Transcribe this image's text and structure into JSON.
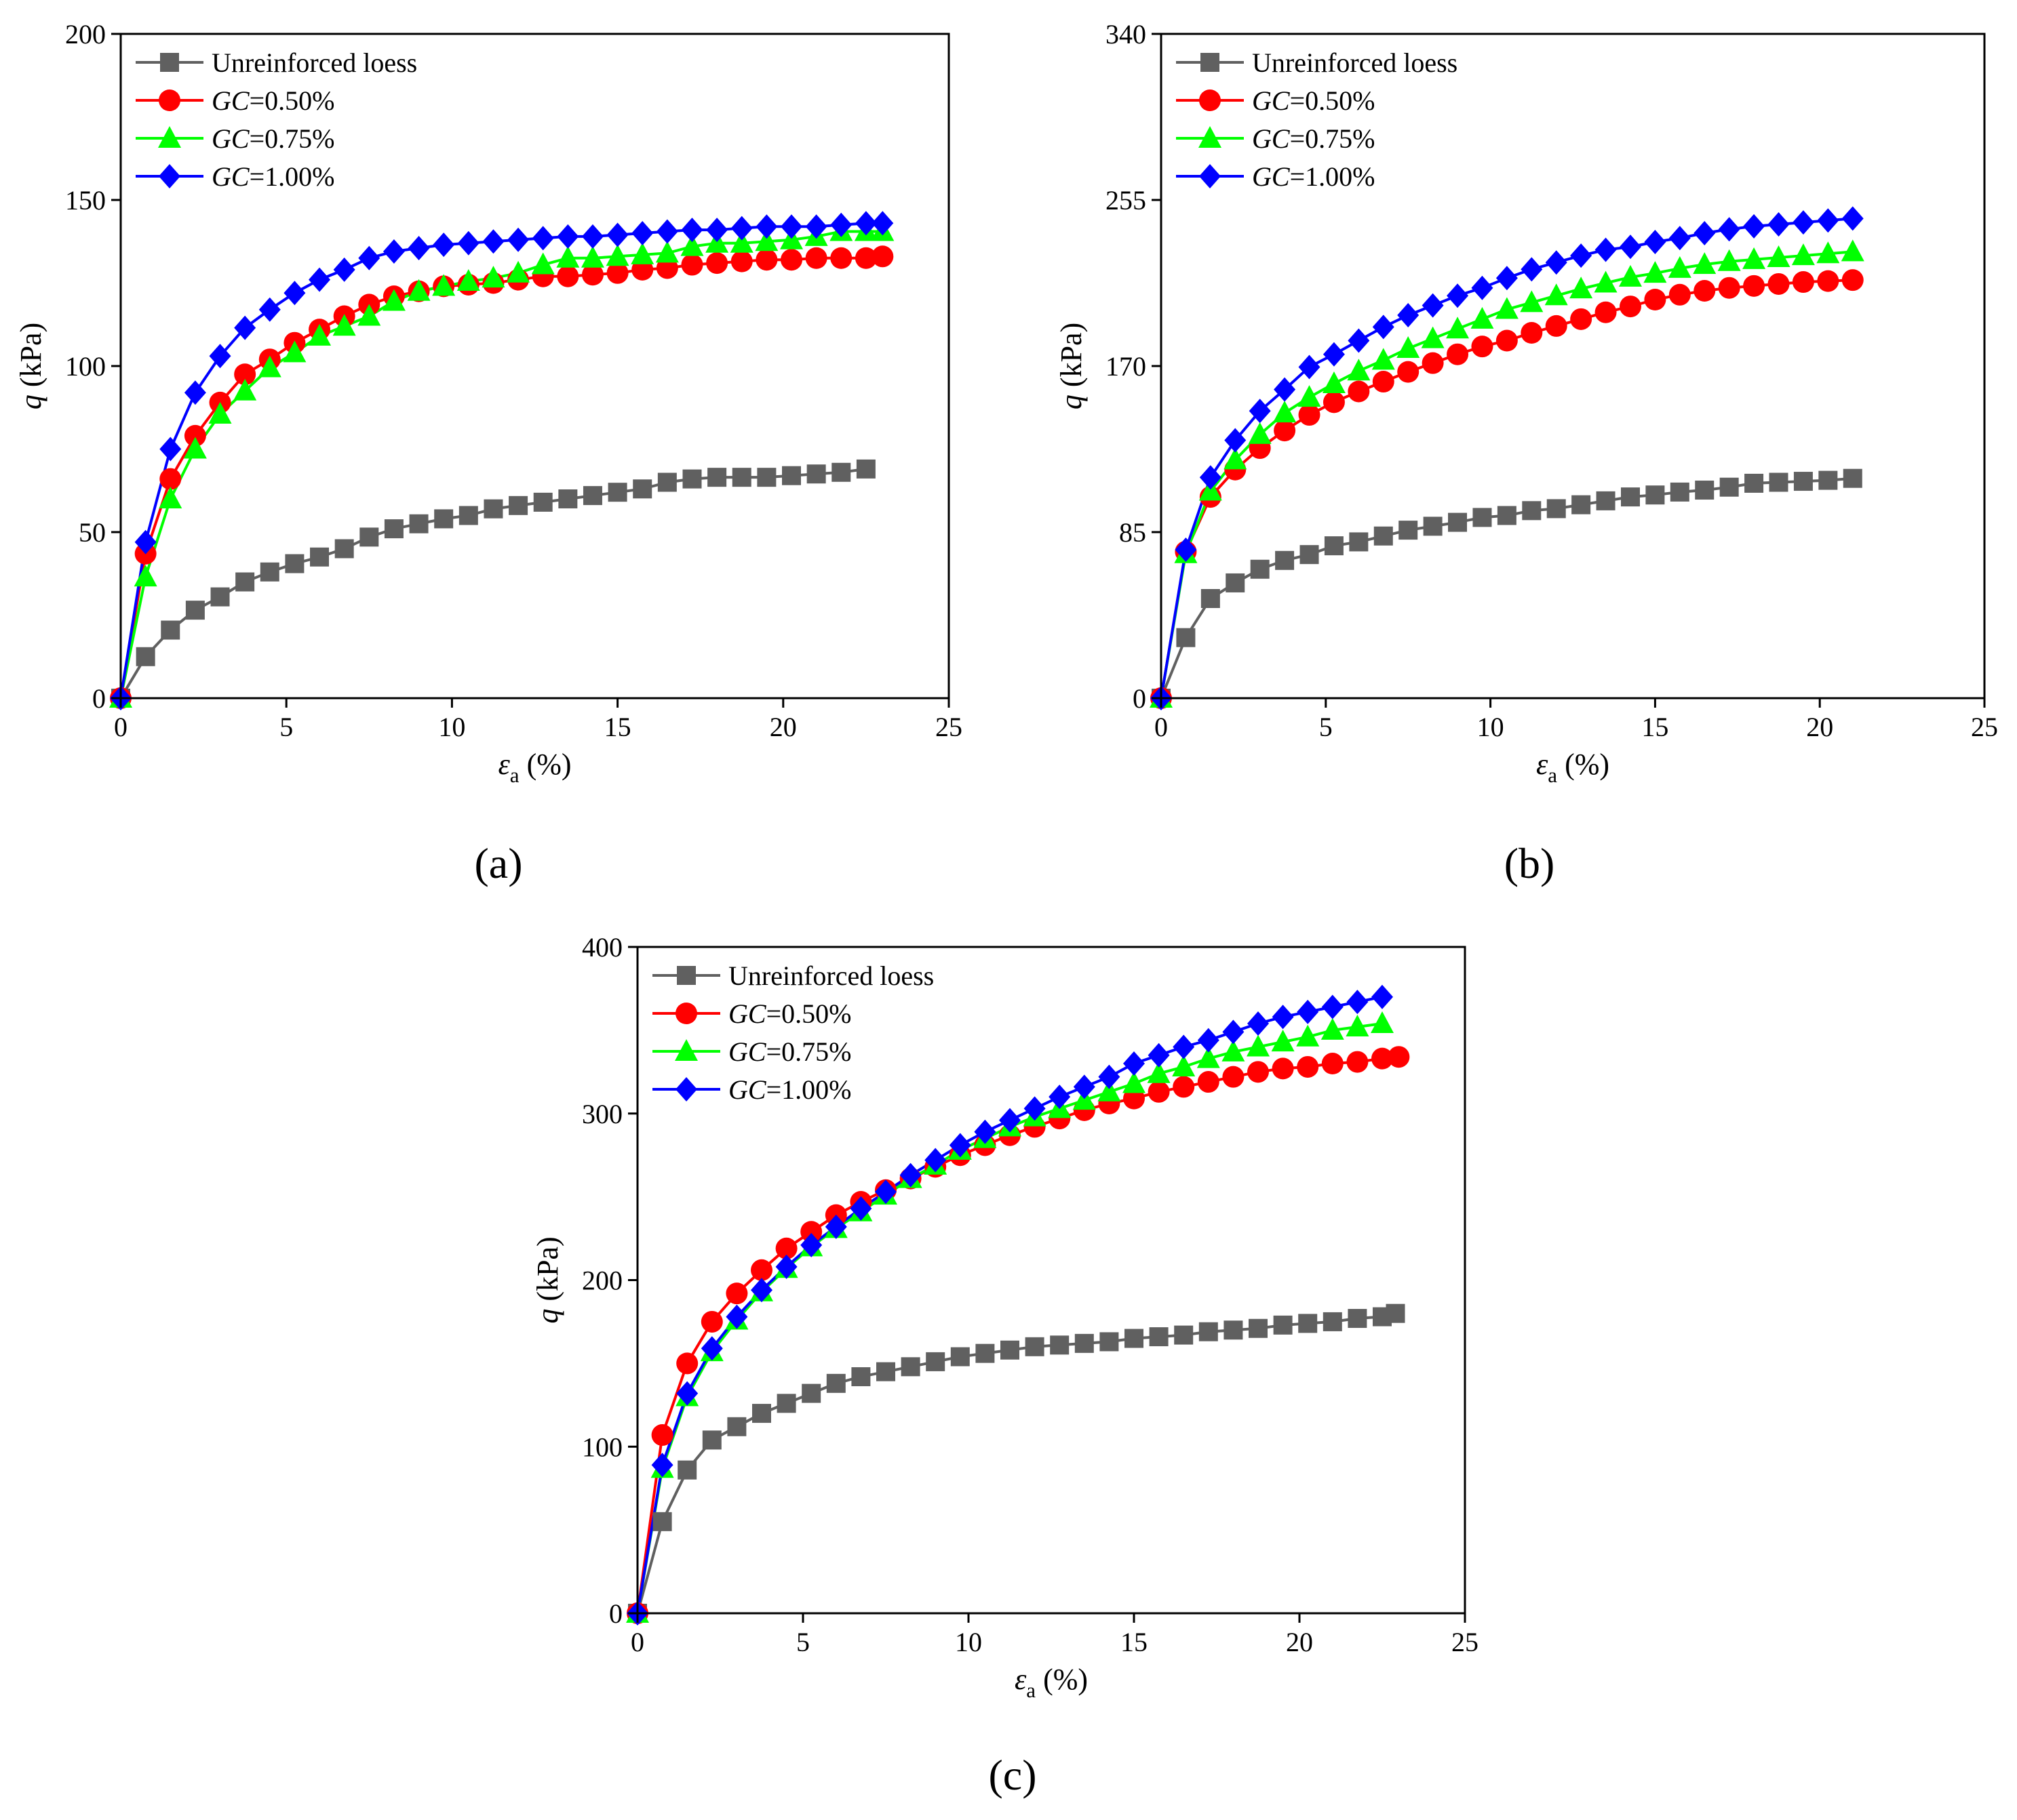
{
  "figure": {
    "panel_labels": [
      "(a)",
      "(b)",
      "(c)"
    ]
  },
  "chart_data": [
    {
      "type": "line",
      "panel": "(a)",
      "xlabel": "εa (%)",
      "ylabel": "q (kPa)",
      "xlim": [
        0,
        25
      ],
      "ylim": [
        0,
        200
      ],
      "xticks": [
        0,
        5,
        10,
        15,
        20,
        25
      ],
      "yticks": [
        0,
        50,
        100,
        150,
        200
      ],
      "grid": false,
      "legend": "top-left",
      "series": [
        {
          "name": "Unreinforced loess",
          "color": "#606060",
          "marker": "square",
          "x": [
            0,
            0.75,
            1.5,
            2.25,
            3.0,
            3.75,
            4.5,
            5.25,
            6.0,
            6.75,
            7.5,
            8.25,
            9.0,
            9.75,
            10.5,
            11.25,
            12.0,
            12.75,
            13.5,
            14.25,
            15.0,
            15.75,
            16.5,
            17.25,
            18.0,
            18.75,
            19.5,
            20.25,
            21.0,
            21.75,
            22.5
          ],
          "y": [
            0,
            12.5,
            20.5,
            26.5,
            30.5,
            35,
            38,
            40.5,
            42.5,
            45,
            48.5,
            51,
            52.5,
            54,
            55,
            57,
            58,
            59,
            60,
            61,
            62,
            63,
            65,
            66,
            66.5,
            66.5,
            66.5,
            67,
            67.5,
            68,
            69
          ]
        },
        {
          "name": "GC=0.50%",
          "color": "#ff0000",
          "marker": "circle",
          "x": [
            0,
            0.75,
            1.5,
            2.25,
            3.0,
            3.75,
            4.5,
            5.25,
            6.0,
            6.75,
            7.5,
            8.25,
            9.0,
            9.75,
            10.5,
            11.25,
            12.0,
            12.75,
            13.5,
            14.25,
            15.0,
            15.75,
            16.5,
            17.25,
            18.0,
            18.75,
            19.5,
            20.25,
            21.0,
            21.75,
            22.5,
            23.0
          ],
          "y": [
            0,
            43.5,
            66,
            79,
            89,
            97.5,
            102,
            107,
            111,
            115,
            118.5,
            121,
            122.5,
            124,
            124.5,
            125,
            126,
            127,
            127,
            127.5,
            128,
            129,
            129.5,
            130.5,
            131,
            131.5,
            132,
            132,
            132.5,
            132.5,
            132.5,
            133
          ]
        },
        {
          "name": "GC=0.75%",
          "color": "#00ff00",
          "marker": "triangle",
          "x": [
            0,
            0.75,
            1.5,
            2.25,
            3.0,
            3.75,
            4.5,
            5.25,
            6.0,
            6.75,
            7.5,
            8.25,
            9.0,
            9.75,
            10.5,
            11.25,
            12.0,
            12.75,
            13.5,
            14.25,
            15.0,
            15.75,
            16.5,
            17.25,
            18.0,
            18.75,
            19.5,
            20.25,
            21.0,
            21.75,
            22.5,
            23.0
          ],
          "y": [
            0,
            36.5,
            60,
            75,
            85.5,
            92.5,
            99.5,
            104,
            109,
            112,
            115,
            119.5,
            122.5,
            124,
            125.5,
            126.5,
            128,
            130.5,
            132.5,
            132.5,
            133,
            133.5,
            134,
            136,
            137,
            137,
            137.5,
            138,
            139,
            140.5,
            140.5,
            140.5
          ]
        },
        {
          "name": "GC=1.00%",
          "color": "#0000ff",
          "marker": "diamond",
          "x": [
            0,
            0.75,
            1.5,
            2.25,
            3.0,
            3.75,
            4.5,
            5.25,
            6.0,
            6.75,
            7.5,
            8.25,
            9.0,
            9.75,
            10.5,
            11.25,
            12.0,
            12.75,
            13.5,
            14.25,
            15.0,
            15.75,
            16.5,
            17.25,
            18.0,
            18.75,
            19.5,
            20.25,
            21.0,
            21.75,
            22.5,
            23.0
          ],
          "y": [
            0,
            47,
            75,
            92,
            103,
            111.5,
            117,
            122,
            126,
            129,
            132.5,
            134.5,
            135.5,
            136.5,
            137,
            137.5,
            138,
            138.5,
            139,
            139,
            139.5,
            140,
            140.5,
            141,
            141,
            141.5,
            142,
            142,
            142,
            142.5,
            143,
            143
          ]
        }
      ]
    },
    {
      "type": "line",
      "panel": "(b)",
      "xlabel": "εa (%)",
      "ylabel": "q (kPa)",
      "xlim": [
        0,
        25
      ],
      "ylim": [
        0,
        340
      ],
      "xticks": [
        0,
        5,
        10,
        15,
        20,
        25
      ],
      "yticks": [
        0,
        85,
        170,
        255,
        340
      ],
      "grid": false,
      "legend": "top-left",
      "series": [
        {
          "name": "Unreinforced loess",
          "color": "#606060",
          "marker": "square",
          "x": [
            0,
            0.75,
            1.5,
            2.25,
            3.0,
            3.75,
            4.5,
            5.25,
            6.0,
            6.75,
            7.5,
            8.25,
            9.0,
            9.75,
            10.5,
            11.25,
            12.0,
            12.75,
            13.5,
            14.25,
            15.0,
            15.75,
            16.5,
            17.25,
            18.0,
            18.75,
            19.5,
            20.25,
            21.0
          ],
          "y": [
            0,
            31,
            51,
            59,
            66,
            70.5,
            73.5,
            78,
            80,
            83,
            86,
            88,
            90,
            92.5,
            93.5,
            96,
            97,
            99,
            101,
            103,
            104,
            105.5,
            106.5,
            108,
            110,
            110.5,
            111,
            111.5,
            112.5
          ]
        },
        {
          "name": "GC=0.50%",
          "color": "#ff0000",
          "marker": "circle",
          "x": [
            0,
            0.75,
            1.5,
            2.25,
            3.0,
            3.75,
            4.5,
            5.25,
            6.0,
            6.75,
            7.5,
            8.25,
            9.0,
            9.75,
            10.5,
            11.25,
            12.0,
            12.75,
            13.5,
            14.25,
            15.0,
            15.75,
            16.5,
            17.25,
            18.0,
            18.75,
            19.5,
            20.25,
            21.0
          ],
          "y": [
            0,
            75,
            103,
            117,
            128,
            137,
            145,
            151.5,
            157,
            162,
            167,
            171.5,
            176,
            180,
            183,
            187,
            190.5,
            194,
            197.5,
            200.5,
            204,
            206.5,
            208.5,
            210,
            211,
            212,
            213,
            213.5,
            214
          ]
        },
        {
          "name": "GC=0.75%",
          "color": "#00ff00",
          "marker": "triangle",
          "x": [
            0,
            0.75,
            1.5,
            2.25,
            3.0,
            3.75,
            4.5,
            5.25,
            6.0,
            6.75,
            7.5,
            8.25,
            9.0,
            9.75,
            10.5,
            11.25,
            12.0,
            12.75,
            13.5,
            14.25,
            15.0,
            15.75,
            16.5,
            17.25,
            18.0,
            18.75,
            19.5,
            20.25,
            21.0
          ],
          "y": [
            0,
            74,
            106,
            122,
            135,
            146,
            154,
            161,
            167.5,
            173,
            179,
            184,
            189,
            194,
            199,
            202.5,
            206,
            209.5,
            212.5,
            215.5,
            217.5,
            220,
            222,
            223.5,
            224.5,
            225.5,
            226.5,
            227.5,
            228.5
          ]
        },
        {
          "name": "GC=1.00%",
          "color": "#0000ff",
          "marker": "diamond",
          "x": [
            0,
            0.75,
            1.5,
            2.25,
            3.0,
            3.75,
            4.5,
            5.25,
            6.0,
            6.75,
            7.5,
            8.25,
            9.0,
            9.75,
            10.5,
            11.25,
            12.0,
            12.75,
            13.5,
            14.25,
            15.0,
            15.75,
            16.5,
            17.25,
            18.0,
            18.75,
            19.5,
            20.25,
            21.0
          ],
          "y": [
            0,
            76,
            113,
            132,
            147,
            158,
            169.5,
            176,
            183,
            190,
            196,
            201,
            206,
            210,
            215,
            219.5,
            223,
            226.5,
            229.5,
            231,
            233.5,
            235.5,
            238,
            240,
            241.5,
            242.5,
            243.5,
            244.5,
            245.5
          ]
        }
      ]
    },
    {
      "type": "line",
      "panel": "(c)",
      "xlabel": "εa (%)",
      "ylabel": "q (kPa)",
      "xlim": [
        0,
        25
      ],
      "ylim": [
        0,
        400
      ],
      "xticks": [
        0,
        5,
        10,
        15,
        20,
        25
      ],
      "yticks": [
        0,
        100,
        200,
        300,
        400
      ],
      "grid": false,
      "legend": "top-left",
      "series": [
        {
          "name": "Unreinforced loess",
          "color": "#606060",
          "marker": "square",
          "x": [
            0,
            0.75,
            1.5,
            2.25,
            3.0,
            3.75,
            4.5,
            5.25,
            6.0,
            6.75,
            7.5,
            8.25,
            9.0,
            9.75,
            10.5,
            11.25,
            12.0,
            12.75,
            13.5,
            14.25,
            15.0,
            15.75,
            16.5,
            17.25,
            18.0,
            18.75,
            19.5,
            20.25,
            21.0,
            21.75,
            22.5,
            22.9
          ],
          "y": [
            0,
            55,
            86,
            104,
            112,
            120,
            126,
            132,
            138,
            142,
            145,
            148,
            151,
            154,
            156,
            158,
            160,
            161,
            162,
            163,
            165,
            166,
            167,
            169,
            170,
            171,
            173,
            174,
            175,
            177,
            178,
            180
          ]
        },
        {
          "name": "GC=0.50%",
          "color": "#ff0000",
          "marker": "circle",
          "x": [
            0,
            0.75,
            1.5,
            2.25,
            3.0,
            3.75,
            4.5,
            5.25,
            6.0,
            6.75,
            7.5,
            8.25,
            9.0,
            9.75,
            10.5,
            11.25,
            12.0,
            12.75,
            13.5,
            14.25,
            15.0,
            15.75,
            16.5,
            17.25,
            18.0,
            18.75,
            19.5,
            20.25,
            21.0,
            21.75,
            22.5,
            23.0
          ],
          "y": [
            0,
            107,
            150,
            175,
            192,
            206,
            219,
            229,
            239,
            247,
            254,
            261,
            268,
            275,
            281,
            287,
            292,
            297,
            302,
            306,
            309,
            313,
            316,
            319,
            322,
            325,
            327,
            328,
            330,
            331,
            333,
            334
          ]
        },
        {
          "name": "GC=0.75%",
          "color": "#00ff00",
          "marker": "triangle",
          "x": [
            0,
            0.75,
            1.5,
            2.25,
            3.0,
            3.75,
            4.5,
            5.25,
            6.0,
            6.75,
            7.5,
            8.25,
            9.0,
            9.75,
            10.5,
            11.25,
            12.0,
            12.75,
            13.5,
            14.25,
            15.0,
            15.75,
            16.5,
            17.25,
            18.0,
            18.75,
            19.5,
            20.25,
            21.0,
            21.75,
            22.5
          ],
          "y": [
            0,
            87,
            130,
            157,
            176,
            193,
            207,
            220,
            231,
            241,
            251,
            261,
            269,
            278,
            285,
            292,
            298,
            303,
            308,
            313,
            318,
            324,
            328,
            333,
            337,
            340,
            343,
            346,
            350,
            352,
            354
          ]
        },
        {
          "name": "GC=1.00%",
          "color": "#0000ff",
          "marker": "diamond",
          "x": [
            0,
            0.75,
            1.5,
            2.25,
            3.0,
            3.75,
            4.5,
            5.25,
            6.0,
            6.75,
            7.5,
            8.25,
            9.0,
            9.75,
            10.5,
            11.25,
            12.0,
            12.75,
            13.5,
            14.25,
            15.0,
            15.75,
            16.5,
            17.25,
            18.0,
            18.75,
            19.5,
            20.25,
            21.0,
            21.75,
            22.5
          ],
          "y": [
            0,
            89,
            132,
            159,
            178,
            194,
            208,
            221,
            232,
            243,
            253,
            263,
            272,
            281,
            289,
            296,
            303,
            310,
            316,
            322,
            330,
            335,
            340,
            344,
            349,
            354,
            358,
            361,
            364,
            367,
            370
          ]
        }
      ]
    }
  ]
}
